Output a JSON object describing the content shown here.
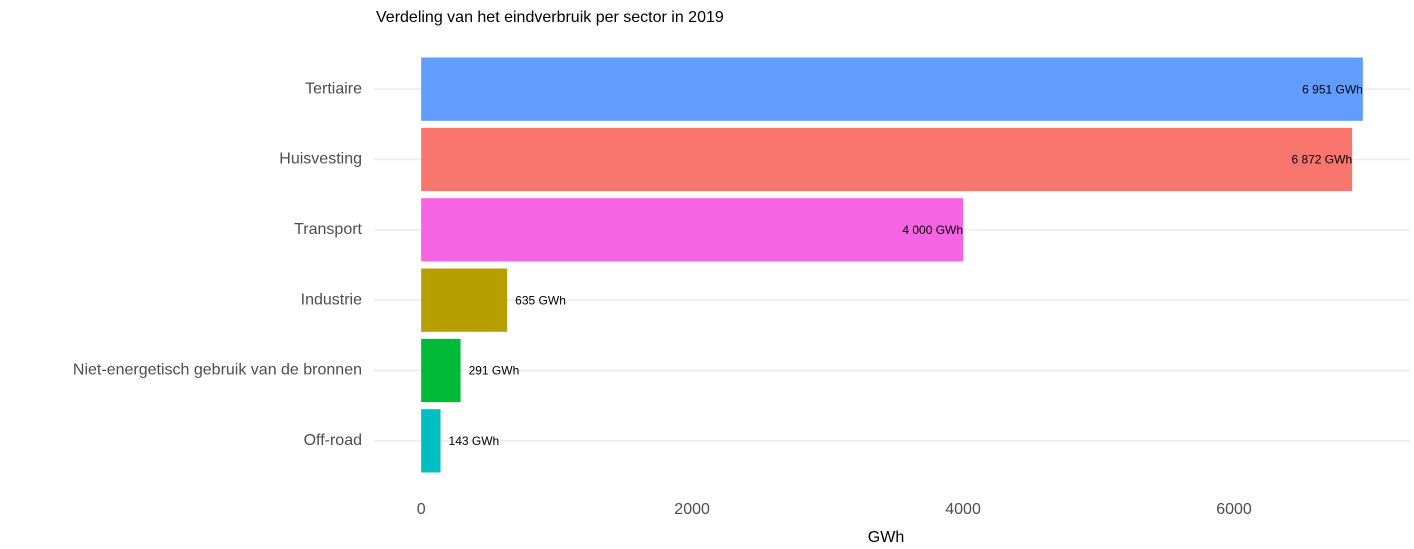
{
  "chart_data": {
    "type": "bar",
    "orientation": "horizontal",
    "title": "Verdeling van het eindverbruik per sector in 2019",
    "x_label": "GWh",
    "categories": [
      "Tertiaire",
      "Huisvesting",
      "Transport",
      "Industrie",
      "Niet-energetisch gebruik van de bronnen",
      "Off-road"
    ],
    "values": [
      6951,
      6872,
      4000,
      635,
      291,
      143
    ],
    "value_labels": [
      "6 951 GWh",
      "6 872 GWh",
      "4 000 GWh",
      "635 GWh",
      "291 GWh",
      "143 GWh"
    ],
    "colors": [
      "#619cff",
      "#f8766d",
      "#f564e3",
      "#b79f00",
      "#00ba38",
      "#00bfc4"
    ],
    "xlim": [
      -348,
      7299
    ],
    "xticks": [
      0,
      2000,
      4000,
      6000
    ],
    "grid": true
  }
}
